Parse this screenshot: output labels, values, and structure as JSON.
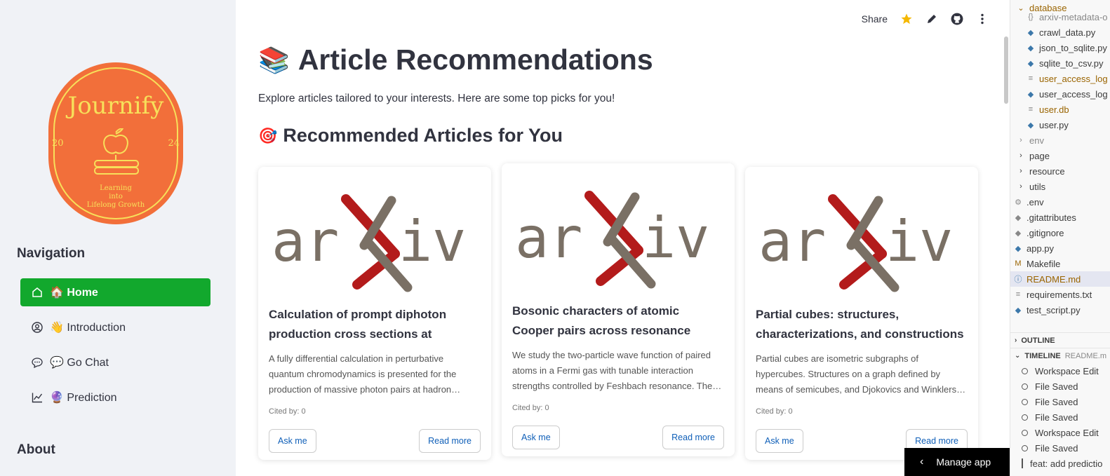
{
  "sidebar": {
    "logo": {
      "name": "Journify",
      "year_left": "20",
      "year_right": "24",
      "tagline": [
        "Learning",
        "into",
        "Lifelong Growth"
      ]
    },
    "nav_title": "Navigation",
    "items": [
      {
        "label": "🏠 Home",
        "icon": "house-icon",
        "active": true
      },
      {
        "label": "👋 Introduction",
        "icon": "user-circle-icon",
        "active": false
      },
      {
        "label": "💬 Go Chat",
        "icon": "chat-icon",
        "active": false
      },
      {
        "label": "🔮 Prediction",
        "icon": "chart-icon",
        "active": false
      }
    ],
    "about_title": "About"
  },
  "toolbar": {
    "share": "Share",
    "icons": [
      "star-icon",
      "edit-icon",
      "github-icon",
      "more-vertical-icon"
    ]
  },
  "main": {
    "title_emoji": "📚",
    "title": "Article Recommendations",
    "subtitle": "Explore articles tailored to your interests. Here are some top picks for you!",
    "section_emoji": "🎯",
    "section_title": "Recommended Articles for You"
  },
  "cards": [
    {
      "title": "Calculation of prompt diphoton production cross sections at Tevatro…",
      "abstract": "A fully differential calculation in perturbative quantum chromodynamics is presented for the production of massive photon pairs at hadron…",
      "cited": "Cited by: 0",
      "ask": "Ask me",
      "read": "Read more"
    },
    {
      "title": "Bosonic characters of atomic Cooper pairs across resonance",
      "abstract": "We study the two-particle wave function of paired atoms in a Fermi gas with tunable interaction strengths controlled by Feshbach resonance. The…",
      "cited": "Cited by: 0",
      "ask": "Ask me",
      "read": "Read more"
    },
    {
      "title": "Partial cubes: structures, characterizations, and constructions",
      "abstract": "Partial cubes are isometric subgraphs of hypercubes. Structures on a graph defined by means of semicubes, and Djokovics and Winklers…",
      "cited": "Cited by: 0",
      "ask": "Ask me",
      "read": "Read more"
    }
  ],
  "thumbnail_text": "arXiv",
  "colors": {
    "accent": "#12a82d",
    "arxiv_red": "#b31b1b",
    "arxiv_gray": "#7a7065",
    "logo_orange": "#f26f3a",
    "logo_yellow": "#f7e05a"
  },
  "manage_app": "Manage app",
  "explorer": {
    "folder": "database",
    "files": [
      {
        "name": "arxiv-metadata-o",
        "type": "json",
        "color": "gray"
      },
      {
        "name": "crawl_data.py",
        "type": "py"
      },
      {
        "name": "json_to_sqlite.py",
        "type": "py"
      },
      {
        "name": "sqlite_to_csv.py",
        "type": "py"
      },
      {
        "name": "user_access_log",
        "type": "txt",
        "color": "mod"
      },
      {
        "name": "user_access_log",
        "type": "txt"
      },
      {
        "name": "user.db",
        "type": "db",
        "color": "mod"
      },
      {
        "name": "user.py",
        "type": "py"
      },
      {
        "name": "env",
        "type": "folder",
        "color": "gray"
      },
      {
        "name": "page",
        "type": "folder"
      },
      {
        "name": "resource",
        "type": "folder"
      },
      {
        "name": "utils",
        "type": "folder"
      },
      {
        "name": ".env",
        "type": "gear"
      },
      {
        "name": ".gitattributes",
        "type": "git"
      },
      {
        "name": ".gitignore",
        "type": "git"
      },
      {
        "name": "app.py",
        "type": "py"
      },
      {
        "name": "Makefile",
        "type": "make"
      },
      {
        "name": "README.md",
        "type": "info",
        "color": "mod",
        "selected": true
      },
      {
        "name": "requirements.txt",
        "type": "txt"
      },
      {
        "name": "test_script.py",
        "type": "py"
      }
    ],
    "outline": "OUTLINE",
    "timeline": "TIMELINE",
    "timeline_file": "README.m",
    "timeline_items": [
      "Workspace Edit",
      "File Saved",
      "File Saved",
      "File Saved",
      "Workspace Edit",
      "File Saved",
      "feat: add predictio"
    ]
  }
}
